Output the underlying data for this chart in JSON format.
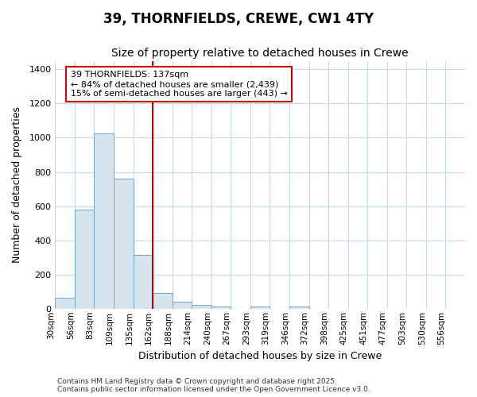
{
  "title_line1": "39, THORNFIELDS, CREWE, CW1 4TY",
  "title_line2": "Size of property relative to detached houses in Crewe",
  "xlabel": "Distribution of detached houses by size in Crewe",
  "ylabel": "Number of detached properties",
  "annotation_line1": "39 THORNFIELDS: 137sqm",
  "annotation_line2": "← 84% of detached houses are smaller (2,439)",
  "annotation_line3": "15% of semi-detached houses are larger (443) →",
  "footer_line1": "Contains HM Land Registry data © Crown copyright and database right 2025.",
  "footer_line2": "Contains public sector information licensed under the Open Government Licence v3.0.",
  "bin_labels": [
    "30sqm",
    "56sqm",
    "83sqm",
    "109sqm",
    "135sqm",
    "162sqm",
    "188sqm",
    "214sqm",
    "240sqm",
    "267sqm",
    "293sqm",
    "319sqm",
    "346sqm",
    "372sqm",
    "398sqm",
    "425sqm",
    "451sqm",
    "477sqm",
    "503sqm",
    "530sqm",
    "556sqm"
  ],
  "bar_values": [
    65,
    580,
    1025,
    760,
    315,
    90,
    40,
    22,
    14,
    0,
    14,
    0,
    14,
    0,
    0,
    0,
    0,
    0,
    0,
    0,
    0
  ],
  "bar_color": "#d6e4f0",
  "bar_edge_color": "#6fa8cc",
  "vline_x": 4.5,
  "vline_color": "#cc0000",
  "vline_lw": 1.5,
  "annotation_box_color": "#cc0000",
  "background_color": "#ffffff",
  "grid_color": "#c8d8ee",
  "ylim": [
    0,
    1450
  ],
  "yticks": [
    0,
    200,
    400,
    600,
    800,
    1000,
    1200,
    1400
  ]
}
